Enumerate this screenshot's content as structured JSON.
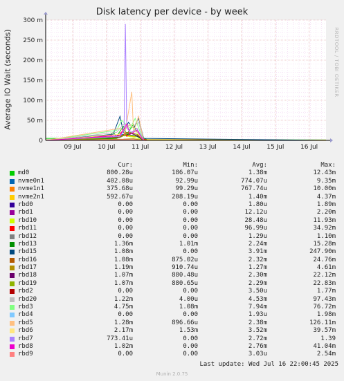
{
  "title": "Disk latency per device - by week",
  "side_label": "RRDTOOL / TOBI OETIKER",
  "ylabel": "Average IO Wait (seconds)",
  "last_update": "Last update: Wed Jul 16 22:00:45 2025",
  "footer": "Munin 2.0.75",
  "columns": [
    "Cur:",
    "Min:",
    "Avg:",
    "Max:"
  ],
  "chart_data": {
    "type": "line",
    "title": "Disk latency per device - by week",
    "ylabel": "Average IO Wait (seconds)",
    "xlabel": "",
    "y_ticks": [
      {
        "v": 0,
        "label": "0"
      },
      {
        "v": 50,
        "label": "50 m"
      },
      {
        "v": 100,
        "label": "100 m"
      },
      {
        "v": 150,
        "label": "150 m"
      },
      {
        "v": 200,
        "label": "200 m"
      },
      {
        "v": 250,
        "label": "250 m"
      },
      {
        "v": 300,
        "label": "300 m"
      }
    ],
    "ylim": [
      0,
      300
    ],
    "y_unit": "milliseconds",
    "xlim": [
      0,
      8.3
    ],
    "x_unit": "days from first visible edge",
    "x_ticks": [
      {
        "v": 0.8,
        "label": "09 Jul"
      },
      {
        "v": 1.8,
        "label": "10 Jul"
      },
      {
        "v": 2.8,
        "label": "11 Jul"
      },
      {
        "v": 3.8,
        "label": "12 Jul"
      },
      {
        "v": 4.8,
        "label": "13 Jul"
      },
      {
        "v": 5.8,
        "label": "14 Jul"
      },
      {
        "v": 6.8,
        "label": "15 Jul"
      },
      {
        "v": 7.8,
        "label": "16 Jul"
      }
    ],
    "grid": true,
    "series": [
      {
        "name": "md0",
        "color": "#00cc00",
        "points": [
          [
            0,
            5
          ],
          [
            1.6,
            5
          ],
          [
            1.7,
            8
          ],
          [
            1.9,
            12
          ],
          [
            2.0,
            20
          ],
          [
            2.1,
            10
          ],
          [
            2.3,
            35
          ],
          [
            2.4,
            15
          ],
          [
            2.6,
            40
          ],
          [
            2.7,
            20
          ],
          [
            2.8,
            10
          ],
          [
            3.0,
            2
          ],
          [
            8.3,
            1
          ]
        ]
      },
      {
        "name": "nvme0n1",
        "color": "#0066b3",
        "points": [
          [
            0,
            1
          ],
          [
            1.8,
            2
          ],
          [
            2.0,
            8
          ],
          [
            2.3,
            15
          ],
          [
            2.5,
            9
          ],
          [
            2.7,
            12
          ],
          [
            2.9,
            2
          ],
          [
            8.3,
            0.5
          ]
        ]
      },
      {
        "name": "nvme1n1",
        "color": "#ff8000",
        "points": [
          [
            0,
            1
          ],
          [
            1.8,
            2
          ],
          [
            2.1,
            9
          ],
          [
            2.35,
            14
          ],
          [
            2.55,
            10
          ],
          [
            2.75,
            13
          ],
          [
            2.9,
            2
          ],
          [
            8.3,
            0.6
          ]
        ]
      },
      {
        "name": "nvme2n1",
        "color": "#ffcc00",
        "points": [
          [
            0,
            1
          ],
          [
            1.8,
            2
          ],
          [
            2.1,
            8
          ],
          [
            2.35,
            12
          ],
          [
            2.6,
            9
          ],
          [
            2.75,
            11
          ],
          [
            2.9,
            1.5
          ],
          [
            8.3,
            0.6
          ]
        ]
      },
      {
        "name": "rbd0",
        "color": "#330099",
        "points": [
          [
            0,
            0
          ],
          [
            8.3,
            0
          ]
        ]
      },
      {
        "name": "rbd1",
        "color": "#990099",
        "points": [
          [
            0,
            0
          ],
          [
            8.3,
            0
          ]
        ]
      },
      {
        "name": "rbd10",
        "color": "#ccff00",
        "points": [
          [
            0,
            0
          ],
          [
            2.0,
            4
          ],
          [
            2.3,
            12
          ],
          [
            2.6,
            8
          ],
          [
            2.9,
            0
          ],
          [
            8.3,
            0
          ]
        ]
      },
      {
        "name": "rbd11",
        "color": "#ff0000",
        "points": [
          [
            0,
            0
          ],
          [
            1.95,
            12
          ],
          [
            2.05,
            5
          ],
          [
            2.3,
            25
          ],
          [
            2.4,
            10
          ],
          [
            2.7,
            30
          ],
          [
            2.85,
            5
          ],
          [
            3.0,
            0
          ],
          [
            8.3,
            0
          ]
        ]
      },
      {
        "name": "rbd12",
        "color": "#808080",
        "points": [
          [
            0,
            0
          ],
          [
            8.3,
            0
          ]
        ]
      },
      {
        "name": "rbd13",
        "color": "#008f00",
        "points": [
          [
            0,
            0
          ],
          [
            2.1,
            5
          ],
          [
            2.4,
            15
          ],
          [
            2.7,
            10
          ],
          [
            2.9,
            0
          ],
          [
            8.3,
            0
          ]
        ]
      },
      {
        "name": "rbd15",
        "color": "#00487d",
        "points": [
          [
            0,
            0
          ],
          [
            2.0,
            15
          ],
          [
            2.2,
            60
          ],
          [
            2.3,
            20
          ],
          [
            2.45,
            45
          ],
          [
            2.6,
            30
          ],
          [
            2.75,
            55
          ],
          [
            2.9,
            5
          ],
          [
            8.3,
            0
          ]
        ]
      },
      {
        "name": "rbd16",
        "color": "#b35a00",
        "points": [
          [
            0,
            0
          ],
          [
            2.2,
            8
          ],
          [
            2.4,
            20
          ],
          [
            2.7,
            15
          ],
          [
            2.9,
            0
          ],
          [
            8.3,
            0
          ]
        ]
      },
      {
        "name": "rbd17",
        "color": "#b38f00",
        "points": [
          [
            0,
            0
          ],
          [
            2.3,
            3
          ],
          [
            2.6,
            4
          ],
          [
            2.9,
            0
          ],
          [
            8.3,
            0
          ]
        ]
      },
      {
        "name": "rbd18",
        "color": "#6b006b",
        "points": [
          [
            0,
            0
          ],
          [
            2.2,
            8
          ],
          [
            2.5,
            18
          ],
          [
            2.7,
            12
          ],
          [
            2.9,
            0
          ],
          [
            8.3,
            0
          ]
        ]
      },
      {
        "name": "rbd19",
        "color": "#8fb300",
        "points": [
          [
            0,
            0
          ],
          [
            2.2,
            7
          ],
          [
            2.5,
            20
          ],
          [
            2.75,
            14
          ],
          [
            2.9,
            0
          ],
          [
            8.3,
            0
          ]
        ]
      },
      {
        "name": "rbd2",
        "color": "#b30000",
        "points": [
          [
            0,
            0
          ],
          [
            8.3,
            0
          ]
        ]
      },
      {
        "name": "rbd20",
        "color": "#bebebe",
        "points": [
          [
            0,
            0
          ],
          [
            2.1,
            20
          ],
          [
            2.3,
            40
          ],
          [
            2.6,
            35
          ],
          [
            2.75,
            45
          ],
          [
            2.9,
            0
          ],
          [
            8.3,
            0
          ]
        ]
      },
      {
        "name": "rbd3",
        "color": "#80ff80",
        "points": [
          [
            0,
            0
          ],
          [
            2.1,
            25
          ],
          [
            2.25,
            50
          ],
          [
            2.5,
            30
          ],
          [
            2.65,
            55
          ],
          [
            2.8,
            20
          ],
          [
            2.9,
            0
          ],
          [
            8.3,
            0
          ]
        ]
      },
      {
        "name": "rbd4",
        "color": "#80c9ff",
        "points": [
          [
            0,
            0
          ],
          [
            8.3,
            0
          ]
        ]
      },
      {
        "name": "rbd5",
        "color": "#ffc080",
        "points": [
          [
            0,
            0
          ],
          [
            2.2,
            30
          ],
          [
            2.35,
            20
          ],
          [
            2.55,
            121
          ],
          [
            2.6,
            20
          ],
          [
            2.75,
            60
          ],
          [
            2.9,
            0
          ],
          [
            8.3,
            0
          ]
        ]
      },
      {
        "name": "rbd6",
        "color": "#ffe680",
        "points": [
          [
            0,
            0
          ],
          [
            2.2,
            15
          ],
          [
            2.5,
            40
          ],
          [
            2.7,
            20
          ],
          [
            2.9,
            0
          ],
          [
            8.3,
            0
          ]
        ]
      },
      {
        "name": "rbd7",
        "color": "#aa80ff",
        "points": [
          [
            0,
            0
          ],
          [
            2.2,
            10
          ],
          [
            2.32,
            25
          ],
          [
            2.36,
            290
          ],
          [
            2.4,
            30
          ],
          [
            2.55,
            20
          ],
          [
            2.7,
            30
          ],
          [
            2.9,
            0
          ],
          [
            8.3,
            0
          ]
        ]
      },
      {
        "name": "rbd8",
        "color": "#ee00cc",
        "points": [
          [
            0,
            0
          ],
          [
            2.2,
            12
          ],
          [
            2.4,
            41
          ],
          [
            2.5,
            15
          ],
          [
            2.7,
            25
          ],
          [
            2.9,
            0
          ],
          [
            8.3,
            0
          ]
        ]
      },
      {
        "name": "rbd9",
        "color": "#ff8080",
        "points": [
          [
            0,
            0
          ],
          [
            2.3,
            2
          ],
          [
            2.6,
            2
          ],
          [
            2.9,
            0
          ],
          [
            8.3,
            0
          ]
        ]
      }
    ]
  },
  "legend": [
    {
      "name": "md0",
      "color": "#00cc00",
      "cur": "800.28u",
      "min": "186.07u",
      "avg": "1.38m",
      "max": "12.43m"
    },
    {
      "name": "nvme0n1",
      "color": "#0066b3",
      "cur": "402.08u",
      "min": "92.99u",
      "avg": "774.07u",
      "max": "9.35m"
    },
    {
      "name": "nvme1n1",
      "color": "#ff8000",
      "cur": "375.68u",
      "min": "99.29u",
      "avg": "767.74u",
      "max": "10.00m"
    },
    {
      "name": "nvme2n1",
      "color": "#ffcc00",
      "cur": "592.67u",
      "min": "208.19u",
      "avg": "1.40m",
      "max": "4.37m"
    },
    {
      "name": "rbd0",
      "color": "#330099",
      "cur": "0.00",
      "min": "0.00",
      "avg": "1.80u",
      "max": "1.89m"
    },
    {
      "name": "rbd1",
      "color": "#990099",
      "cur": "0.00",
      "min": "0.00",
      "avg": "12.12u",
      "max": "2.20m"
    },
    {
      "name": "rbd10",
      "color": "#ccff00",
      "cur": "0.00",
      "min": "0.00",
      "avg": "28.48u",
      "max": "11.93m"
    },
    {
      "name": "rbd11",
      "color": "#ff0000",
      "cur": "0.00",
      "min": "0.00",
      "avg": "96.99u",
      "max": "34.92m"
    },
    {
      "name": "rbd12",
      "color": "#808080",
      "cur": "0.00",
      "min": "0.00",
      "avg": "1.29u",
      "max": "1.10m"
    },
    {
      "name": "rbd13",
      "color": "#008f00",
      "cur": "1.36m",
      "min": "1.01m",
      "avg": "2.24m",
      "max": "15.28m"
    },
    {
      "name": "rbd15",
      "color": "#00487d",
      "cur": "1.08m",
      "min": "0.00",
      "avg": "3.91m",
      "max": "247.90m"
    },
    {
      "name": "rbd16",
      "color": "#b35a00",
      "cur": "1.08m",
      "min": "875.02u",
      "avg": "2.32m",
      "max": "24.76m"
    },
    {
      "name": "rbd17",
      "color": "#b38f00",
      "cur": "1.19m",
      "min": "910.74u",
      "avg": "1.27m",
      "max": "4.61m"
    },
    {
      "name": "rbd18",
      "color": "#6b006b",
      "cur": "1.07m",
      "min": "880.48u",
      "avg": "2.30m",
      "max": "22.12m"
    },
    {
      "name": "rbd19",
      "color": "#8fb300",
      "cur": "1.07m",
      "min": "880.65u",
      "avg": "2.29m",
      "max": "22.83m"
    },
    {
      "name": "rbd2",
      "color": "#b30000",
      "cur": "0.00",
      "min": "0.00",
      "avg": "3.50u",
      "max": "1.77m"
    },
    {
      "name": "rbd20",
      "color": "#bebebe",
      "cur": "1.22m",
      "min": "4.00u",
      "avg": "4.53m",
      "max": "97.43m"
    },
    {
      "name": "rbd3",
      "color": "#80ff80",
      "cur": "4.75m",
      "min": "1.08m",
      "avg": "7.94m",
      "max": "76.72m"
    },
    {
      "name": "rbd4",
      "color": "#80c9ff",
      "cur": "0.00",
      "min": "0.00",
      "avg": "1.93u",
      "max": "1.98m"
    },
    {
      "name": "rbd5",
      "color": "#ffc080",
      "cur": "1.28m",
      "min": "896.66u",
      "avg": "2.38m",
      "max": "126.11m"
    },
    {
      "name": "rbd6",
      "color": "#ffe680",
      "cur": "2.17m",
      "min": "1.53m",
      "avg": "3.52m",
      "max": "39.57m"
    },
    {
      "name": "rbd7",
      "color": "#aa80ff",
      "cur": "773.41u",
      "min": "0.00",
      "avg": "2.72m",
      "max": "1.39"
    },
    {
      "name": "rbd8",
      "color": "#ee00cc",
      "cur": "1.02m",
      "min": "0.00",
      "avg": "2.76m",
      "max": "41.04m"
    },
    {
      "name": "rbd9",
      "color": "#ff8080",
      "cur": "0.00",
      "min": "0.00",
      "avg": "3.03u",
      "max": "2.54m"
    }
  ]
}
